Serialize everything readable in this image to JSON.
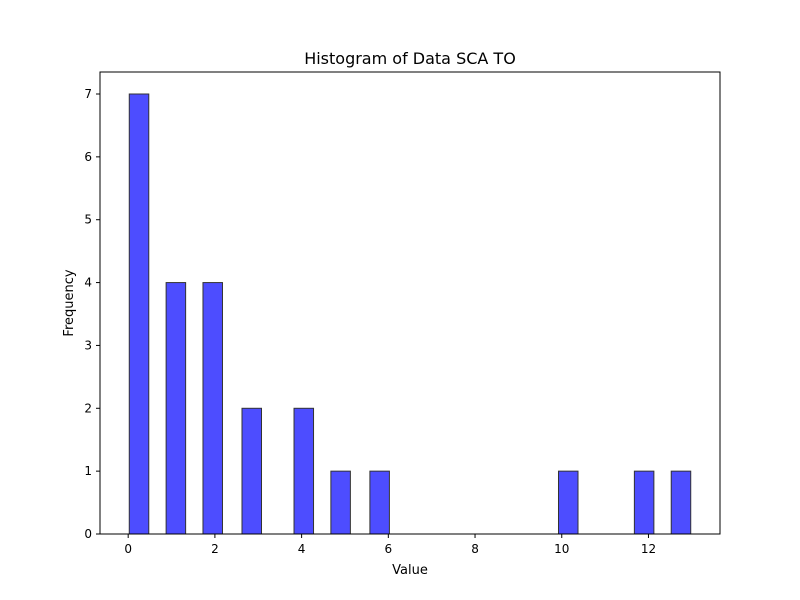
{
  "chart_data": {
    "type": "bar",
    "title": "Histogram of Data SCA TO",
    "xlabel": "Value",
    "ylabel": "Frequency",
    "bar_color": "#4d4dff",
    "edge_color": "#333333",
    "bin_width": 0.45,
    "bins": [
      {
        "x": 0.25,
        "count": 7
      },
      {
        "x": 1.1,
        "count": 4
      },
      {
        "x": 1.95,
        "count": 4
      },
      {
        "x": 2.85,
        "count": 2
      },
      {
        "x": 4.05,
        "count": 2
      },
      {
        "x": 4.9,
        "count": 1
      },
      {
        "x": 5.8,
        "count": 1
      },
      {
        "x": 10.15,
        "count": 1
      },
      {
        "x": 11.9,
        "count": 1
      },
      {
        "x": 12.75,
        "count": 1
      }
    ],
    "xlim": [
      -0.65,
      13.65
    ],
    "ylim": [
      0,
      7.35
    ],
    "xticks": [
      0,
      2,
      4,
      6,
      8,
      10,
      12
    ],
    "yticks": [
      0,
      1,
      2,
      3,
      4,
      5,
      6,
      7
    ],
    "grid": false,
    "legend": false
  }
}
